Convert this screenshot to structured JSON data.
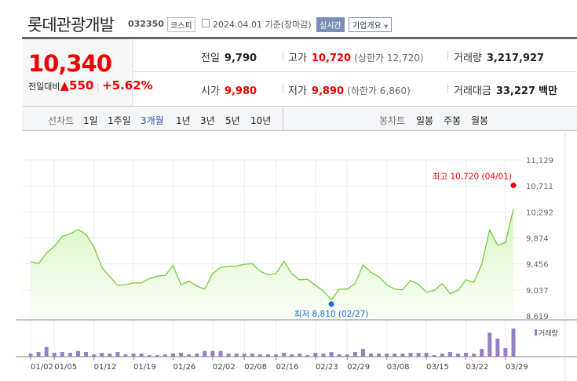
{
  "header": {
    "title": "롯데관광개발",
    "code": "032350",
    "market": "코스피",
    "date": "2024.04.01 기준(장마감)",
    "realtime_label": "실시간",
    "company_label": "기업개요",
    "company_icon": "caret-down-icon"
  },
  "quote": {
    "price": "10,340",
    "change_label": "전일대비",
    "change_icon": "triangle-up-icon",
    "change": "550",
    "change_pct": "+5.62%",
    "prev_label": "전일",
    "prev": "9,790",
    "high_label": "고가",
    "high": "10,720",
    "upper_limit": "(상한가 12,720)",
    "volume_label": "거래량",
    "volume": "3,217,927",
    "open_label": "시가",
    "open": "9,980",
    "low_label": "저가",
    "low": "9,890",
    "lower_limit": "(하한가 6,860)",
    "amount_label": "거래대금",
    "amount": "33,227",
    "amount_unit": "백만"
  },
  "toolbar": {
    "line_label": "선차트",
    "periods": [
      "1일",
      "1주일",
      "3개월",
      "1년",
      "3년",
      "5년",
      "10년"
    ],
    "active_period": "3개월",
    "candle_label": "봉차트",
    "candles": [
      "일봉",
      "주봉",
      "월봉"
    ]
  },
  "colors": {
    "up": "#ee0000",
    "line": "#6fcf3a",
    "fill": "#d9f5c3",
    "volume": "#9580c5",
    "low_marker": "#1a66dd"
  },
  "chart_data": {
    "type": "area",
    "dates": [
      "01/02",
      "01/03",
      "01/04",
      "01/05",
      "01/08",
      "01/09",
      "01/10",
      "01/11",
      "01/12",
      "01/15",
      "01/16",
      "01/17",
      "01/18",
      "01/19",
      "01/22",
      "01/23",
      "01/24",
      "01/25",
      "01/26",
      "01/29",
      "01/30",
      "01/31",
      "02/01",
      "02/02",
      "02/05",
      "02/06",
      "02/07",
      "02/08",
      "02/13",
      "02/14",
      "02/15",
      "02/16",
      "02/19",
      "02/20",
      "02/21",
      "02/22",
      "02/23",
      "02/26",
      "02/27",
      "02/28",
      "02/29",
      "03/04",
      "03/05",
      "03/06",
      "03/07",
      "03/08",
      "03/11",
      "03/12",
      "03/13",
      "03/14",
      "03/15",
      "03/18",
      "03/19",
      "03/20",
      "03/21",
      "03/22",
      "03/25",
      "03/26",
      "03/27",
      "03/28",
      "03/29",
      "04/01"
    ],
    "close": [
      9490,
      9460,
      9630,
      9740,
      9900,
      9940,
      10010,
      9930,
      9730,
      9400,
      9250,
      9110,
      9120,
      9150,
      9150,
      9220,
      9260,
      9270,
      9430,
      9120,
      9180,
      9100,
      9050,
      9300,
      9400,
      9420,
      9420,
      9450,
      9460,
      9340,
      9280,
      9300,
      9500,
      9300,
      9200,
      9210,
      9110,
      9020,
      8880,
      9050,
      9050,
      9140,
      9440,
      9320,
      9250,
      9120,
      9050,
      9040,
      9190,
      9130,
      9000,
      9030,
      9140,
      8980,
      9030,
      9200,
      9160,
      9450,
      10000,
      9760,
      9800,
      10340
    ],
    "volume": [
      354000,
      531000,
      1121000,
      443000,
      531000,
      443000,
      649000,
      531000,
      266000,
      443000,
      354000,
      531000,
      266000,
      354000,
      354000,
      177000,
      177000,
      266000,
      354000,
      443000,
      266000,
      354000,
      649000,
      649000,
      649000,
      354000,
      354000,
      354000,
      354000,
      266000,
      266000,
      266000,
      443000,
      266000,
      354000,
      177000,
      443000,
      354000,
      531000,
      266000,
      266000,
      531000,
      885000,
      354000,
      354000,
      354000,
      354000,
      354000,
      443000,
      443000,
      443000,
      177000,
      354000,
      531000,
      354000,
      443000,
      354000,
      885000,
      2744000,
      2065000,
      974000,
      3218000
    ],
    "x_tick_labels": [
      "01/02",
      "01/05",
      "01/12",
      "01/19",
      "01/26",
      "02/02",
      "02/08",
      "02/16",
      "02/23",
      "02/29",
      "03/08",
      "03/15",
      "03/22",
      "03/29"
    ],
    "y_tick_labels": [
      "11,129",
      "10,711",
      "10,292",
      "9,874",
      "9,456",
      "9,037",
      "8,619"
    ],
    "ylim": [
      8619,
      11129
    ],
    "high_annotation": "최고 10,720 (04/01)",
    "high_value": 10720,
    "high_date": "04/01",
    "low_annotation": "최저 8,810 (02/27)",
    "low_value": 8810,
    "low_date": "02/27",
    "volume_legend": "거래량",
    "grid": true
  }
}
